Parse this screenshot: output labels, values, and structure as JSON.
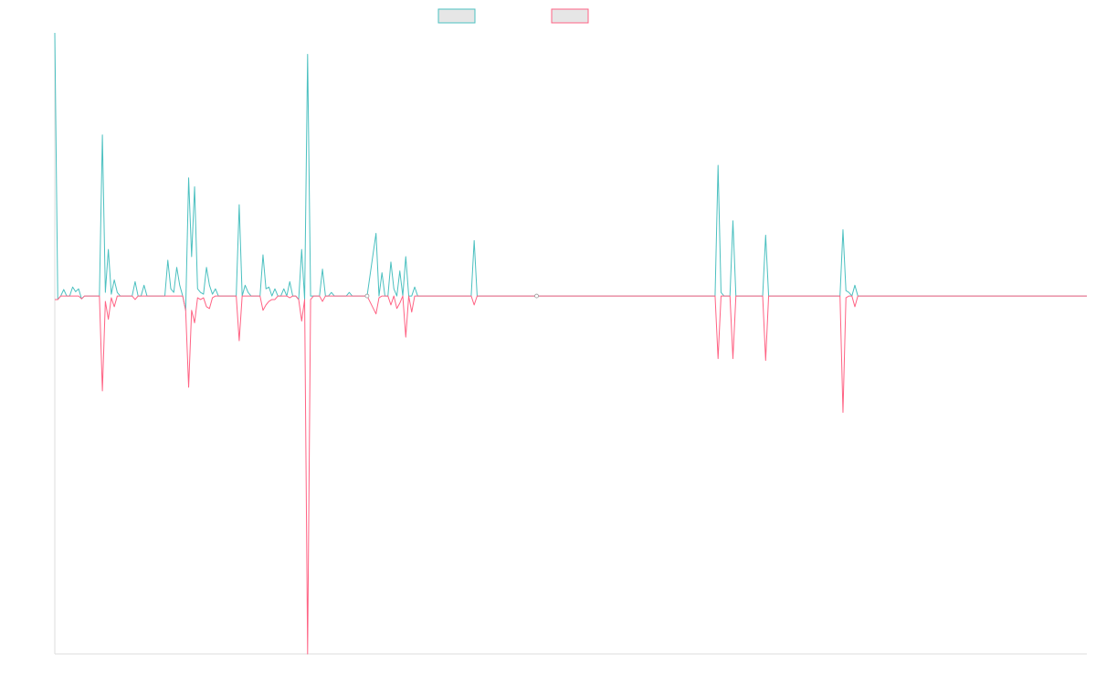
{
  "chart_data": {
    "type": "line",
    "title": "",
    "xlabel": "",
    "ylabel": "",
    "legend": {
      "position": "top-center",
      "entries": [
        {
          "label": "",
          "border_color": "#4bc0c0",
          "fill_color": "#e6e6e6"
        },
        {
          "label": "",
          "border_color": "#ff6384",
          "fill_color": "#e6e6e6"
        }
      ]
    },
    "grid": false,
    "x_count": 348,
    "ylim": [
      -1.0,
      0.735
    ],
    "series": [
      {
        "color": "#4bc0c0",
        "points": [
          [
            0,
            0.735
          ],
          [
            1,
            -0.01
          ],
          [
            2,
            0.0
          ],
          [
            3,
            0.018
          ],
          [
            4,
            0.0
          ],
          [
            5,
            0.0
          ],
          [
            6,
            0.025
          ],
          [
            7,
            0.012
          ],
          [
            8,
            0.02
          ],
          [
            9,
            -0.008
          ],
          [
            10,
            0.0
          ],
          [
            15,
            0.0
          ],
          [
            16,
            0.45
          ],
          [
            17,
            0.01
          ],
          [
            18,
            0.13
          ],
          [
            19,
            0.005
          ],
          [
            20,
            0.045
          ],
          [
            21,
            0.01
          ],
          [
            22,
            0.0
          ],
          [
            26,
            0.0
          ],
          [
            27,
            0.04
          ],
          [
            28,
            0.0
          ],
          [
            29,
            0.0
          ],
          [
            30,
            0.03
          ],
          [
            31,
            0.0
          ],
          [
            37,
            0.0
          ],
          [
            38,
            0.1
          ],
          [
            39,
            0.02
          ],
          [
            40,
            0.01
          ],
          [
            41,
            0.08
          ],
          [
            42,
            0.03
          ],
          [
            43,
            0.0
          ],
          [
            44,
            -0.04
          ],
          [
            45,
            0.33
          ],
          [
            46,
            0.11
          ],
          [
            47,
            0.305
          ],
          [
            48,
            0.02
          ],
          [
            49,
            0.01
          ],
          [
            50,
            0.005
          ],
          [
            51,
            0.08
          ],
          [
            52,
            0.03
          ],
          [
            53,
            0.005
          ],
          [
            54,
            0.02
          ],
          [
            55,
            0.0
          ],
          [
            58,
            0.0
          ],
          [
            59,
            0.0
          ],
          [
            60,
            0.0
          ],
          [
            61,
            0.0
          ],
          [
            62,
            0.255
          ],
          [
            63,
            0.0
          ],
          [
            64,
            0.03
          ],
          [
            65,
            0.01
          ],
          [
            66,
            0.0
          ],
          [
            67,
            0.0
          ],
          [
            69,
            0.0
          ],
          [
            70,
            0.115
          ],
          [
            71,
            0.02
          ],
          [
            72,
            0.025
          ],
          [
            73,
            0.0
          ],
          [
            74,
            0.02
          ],
          [
            75,
            0.0
          ],
          [
            76,
            0.0
          ],
          [
            77,
            0.02
          ],
          [
            78,
            0.0
          ],
          [
            79,
            0.04
          ],
          [
            80,
            0.0
          ],
          [
            81,
            0.0
          ],
          [
            82,
            -0.01
          ],
          [
            83,
            0.13
          ],
          [
            84,
            -0.01
          ],
          [
            85,
            0.675
          ],
          [
            86,
            0.0
          ],
          [
            87,
            0.0
          ],
          [
            88,
            0.0
          ],
          [
            89,
            0.0
          ],
          [
            90,
            0.075
          ],
          [
            91,
            0.0
          ],
          [
            92,
            0.0
          ],
          [
            93,
            0.01
          ],
          [
            94,
            0.0
          ],
          [
            98,
            0.0
          ],
          [
            99,
            0.01
          ],
          [
            100,
            0.0
          ],
          [
            103,
            0.0
          ],
          [
            105,
            0.0
          ],
          [
            108,
            0.175
          ],
          [
            109,
            0.0
          ],
          [
            110,
            0.065
          ],
          [
            111,
            0.0
          ],
          [
            112,
            0.0
          ],
          [
            113,
            0.095
          ],
          [
            114,
            0.02
          ],
          [
            115,
            0.0
          ],
          [
            116,
            0.07
          ],
          [
            117,
            0.0
          ],
          [
            118,
            0.11
          ],
          [
            119,
            0.0
          ],
          [
            120,
            0.0
          ],
          [
            121,
            0.025
          ],
          [
            122,
            0.0
          ],
          [
            140,
            0.0
          ],
          [
            141,
            0.155
          ],
          [
            142,
            0.0
          ],
          [
            143,
            0.0
          ],
          [
            162,
            0.0
          ],
          [
            165,
            0.0
          ],
          [
            168,
            0.0
          ],
          [
            222,
            0.0
          ],
          [
            223,
            0.365
          ],
          [
            224,
            0.01
          ],
          [
            225,
            0.0
          ],
          [
            226,
            0.0
          ],
          [
            227,
            0.0
          ],
          [
            228,
            0.21
          ],
          [
            229,
            0.0
          ],
          [
            230,
            0.0
          ],
          [
            231,
            0.0
          ],
          [
            236,
            0.0
          ],
          [
            237,
            0.0
          ],
          [
            238,
            0.0
          ],
          [
            239,
            0.17
          ],
          [
            240,
            0.0
          ],
          [
            264,
            0.0
          ],
          [
            265,
            0.185
          ],
          [
            266,
            0.015
          ],
          [
            267,
            0.01
          ],
          [
            268,
            0.0
          ],
          [
            269,
            0.03
          ],
          [
            270,
            0.0
          ],
          [
            271,
            0.0
          ],
          [
            347,
            0.0
          ]
        ]
      },
      {
        "color": "#ff6384",
        "points": [
          [
            0,
            -0.01
          ],
          [
            1,
            -0.01
          ],
          [
            2,
            0.0
          ],
          [
            3,
            0.0
          ],
          [
            4,
            0.0
          ],
          [
            5,
            0.0
          ],
          [
            6,
            0.0
          ],
          [
            7,
            0.0
          ],
          [
            8,
            0.0
          ],
          [
            9,
            -0.008
          ],
          [
            10,
            0.0
          ],
          [
            15,
            0.0
          ],
          [
            16,
            -0.265
          ],
          [
            17,
            -0.015
          ],
          [
            18,
            -0.065
          ],
          [
            19,
            -0.005
          ],
          [
            20,
            -0.03
          ],
          [
            21,
            0.0
          ],
          [
            22,
            0.0
          ],
          [
            26,
            0.0
          ],
          [
            27,
            -0.01
          ],
          [
            28,
            0.0
          ],
          [
            29,
            0.0
          ],
          [
            30,
            0.0
          ],
          [
            31,
            0.0
          ],
          [
            37,
            0.0
          ],
          [
            38,
            0.0
          ],
          [
            39,
            0.0
          ],
          [
            40,
            0.0
          ],
          [
            41,
            0.0
          ],
          [
            42,
            0.0
          ],
          [
            43,
            0.0
          ],
          [
            44,
            -0.04
          ],
          [
            45,
            -0.255
          ],
          [
            46,
            -0.04
          ],
          [
            47,
            -0.075
          ],
          [
            48,
            -0.005
          ],
          [
            49,
            -0.01
          ],
          [
            50,
            -0.005
          ],
          [
            51,
            -0.03
          ],
          [
            52,
            -0.035
          ],
          [
            53,
            -0.005
          ],
          [
            54,
            0.0
          ],
          [
            55,
            0.0
          ],
          [
            58,
            0.0
          ],
          [
            59,
            0.0
          ],
          [
            60,
            0.0
          ],
          [
            61,
            0.0
          ],
          [
            62,
            -0.125
          ],
          [
            63,
            0.0
          ],
          [
            64,
            0.0
          ],
          [
            65,
            0.0
          ],
          [
            66,
            0.0
          ],
          [
            67,
            0.0
          ],
          [
            69,
            0.0
          ],
          [
            70,
            -0.04
          ],
          [
            71,
            -0.025
          ],
          [
            72,
            -0.015
          ],
          [
            73,
            -0.01
          ],
          [
            74,
            -0.01
          ],
          [
            75,
            0.0
          ],
          [
            76,
            0.0
          ],
          [
            77,
            0.0
          ],
          [
            78,
            0.0
          ],
          [
            79,
            -0.005
          ],
          [
            80,
            0.0
          ],
          [
            81,
            0.0
          ],
          [
            82,
            -0.01
          ],
          [
            83,
            -0.07
          ],
          [
            84,
            -0.01
          ],
          [
            85,
            -1.0
          ],
          [
            86,
            -0.01
          ],
          [
            87,
            0.0
          ],
          [
            88,
            0.0
          ],
          [
            89,
            0.0
          ],
          [
            90,
            -0.015
          ],
          [
            91,
            0.0
          ],
          [
            92,
            0.0
          ],
          [
            93,
            0.0
          ],
          [
            94,
            0.0
          ],
          [
            98,
            0.0
          ],
          [
            99,
            0.0
          ],
          [
            100,
            0.0
          ],
          [
            103,
            0.0
          ],
          [
            105,
            0.0
          ],
          [
            108,
            -0.05
          ],
          [
            109,
            -0.005
          ],
          [
            110,
            0.0
          ],
          [
            111,
            0.0
          ],
          [
            112,
            0.0
          ],
          [
            113,
            -0.025
          ],
          [
            114,
            0.0
          ],
          [
            115,
            -0.035
          ],
          [
            116,
            -0.02
          ],
          [
            117,
            0.0
          ],
          [
            118,
            -0.115
          ],
          [
            119,
            0.0
          ],
          [
            120,
            -0.045
          ],
          [
            121,
            0.0
          ],
          [
            122,
            0.0
          ],
          [
            140,
            0.0
          ],
          [
            141,
            -0.025
          ],
          [
            142,
            0.0
          ],
          [
            143,
            0.0
          ],
          [
            162,
            0.0
          ],
          [
            165,
            0.0
          ],
          [
            168,
            0.0
          ],
          [
            222,
            0.0
          ],
          [
            223,
            -0.175
          ],
          [
            224,
            0.0
          ],
          [
            225,
            0.0
          ],
          [
            226,
            0.0
          ],
          [
            227,
            0.0
          ],
          [
            228,
            -0.175
          ],
          [
            229,
            0.0
          ],
          [
            230,
            0.0
          ],
          [
            231,
            0.0
          ],
          [
            236,
            0.0
          ],
          [
            237,
            0.0
          ],
          [
            238,
            0.0
          ],
          [
            239,
            -0.18
          ],
          [
            240,
            0.0
          ],
          [
            264,
            0.0
          ],
          [
            265,
            -0.325
          ],
          [
            266,
            -0.005
          ],
          [
            267,
            0.0
          ],
          [
            268,
            0.0
          ],
          [
            269,
            -0.03
          ],
          [
            270,
            0.0
          ],
          [
            271,
            0.0
          ],
          [
            347,
            0.0
          ]
        ]
      }
    ]
  }
}
